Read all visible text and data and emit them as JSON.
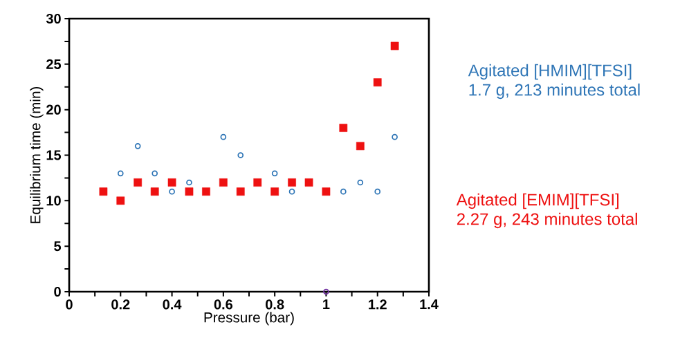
{
  "chart_data": {
    "type": "scatter",
    "xlabel": "Pressure (bar)",
    "ylabel": "Equilibrium time (min)",
    "xlim": [
      0,
      1.4
    ],
    "xticks": [
      0,
      0.2,
      0.4,
      0.6,
      0.8,
      1,
      1.2,
      1.4
    ],
    "ylim": [
      0,
      30
    ],
    "yticks": [
      0,
      5,
      10,
      15,
      20,
      25,
      30
    ],
    "series": [
      {
        "name": "Agitated [HMIM][TFSI]",
        "color": "#2e75b6",
        "marker": "circle",
        "x": [
          0.2,
          0.267,
          0.333,
          0.4,
          0.467,
          0.6,
          0.667,
          0.8,
          0.867,
          1.067,
          1.133,
          1.2,
          1.267
        ],
        "values": [
          13,
          16,
          13,
          11,
          12,
          17,
          15,
          13,
          11,
          11,
          12,
          11,
          17
        ]
      },
      {
        "name": "Agitated [EMIM][TFSI]",
        "color": "#ee1111",
        "marker": "square",
        "x": [
          0.133,
          0.2,
          0.267,
          0.333,
          0.4,
          0.467,
          0.533,
          0.6,
          0.667,
          0.733,
          0.8,
          0.867,
          0.933,
          1.0,
          1.067,
          1.133,
          1.2,
          1.267
        ],
        "values": [
          11,
          10,
          12,
          11,
          12,
          11,
          11,
          12,
          11,
          12,
          11,
          12,
          12,
          11,
          18,
          16,
          23,
          27
        ]
      },
      {
        "color": "#7030a0",
        "marker": "circle",
        "x": [
          1.0
        ],
        "values": [
          0
        ]
      }
    ],
    "annotations": [
      "1.7 g, 213 minutes total",
      "2.27 g, 243 minutes total"
    ]
  }
}
